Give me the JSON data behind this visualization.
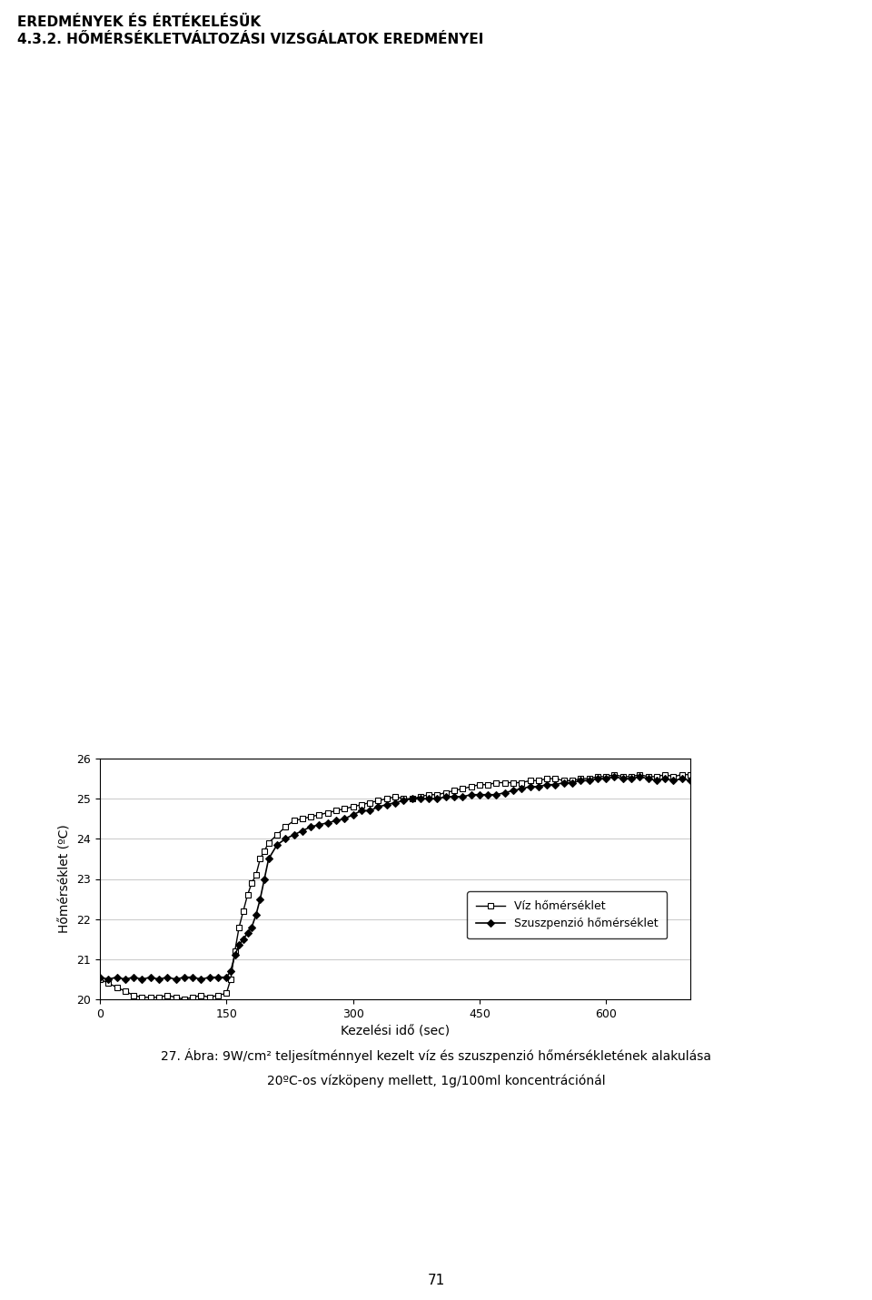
{
  "title": "",
  "xlabel": "Kezelési idő (sec)",
  "ylabel": "Hőmérséklet (ºC)",
  "xlim": [
    0,
    700
  ],
  "ylim": [
    20,
    26
  ],
  "xticks": [
    0,
    150,
    300,
    450,
    600
  ],
  "yticks": [
    20,
    21,
    22,
    23,
    24,
    25,
    26
  ],
  "legend1": "Víz hőmérséklet",
  "legend2": "Szuszpenzió hőmérséklet",
  "background_color": "#ffffff",
  "line1_color": "#000000",
  "line2_color": "#000000",
  "water_x": [
    0,
    10,
    20,
    30,
    40,
    50,
    60,
    70,
    80,
    90,
    100,
    110,
    120,
    130,
    140,
    150,
    155,
    160,
    165,
    170,
    175,
    180,
    185,
    190,
    195,
    200,
    210,
    220,
    230,
    240,
    250,
    260,
    270,
    280,
    290,
    300,
    310,
    320,
    330,
    340,
    350,
    360,
    370,
    380,
    390,
    400,
    410,
    420,
    430,
    440,
    450,
    460,
    470,
    480,
    490,
    500,
    510,
    520,
    530,
    540,
    550,
    560,
    570,
    580,
    590,
    600,
    610,
    620,
    630,
    640,
    650,
    660,
    670,
    680,
    690,
    700
  ],
  "water_y": [
    20.5,
    20.4,
    20.3,
    20.2,
    20.1,
    20.05,
    20.05,
    20.05,
    20.1,
    20.05,
    20.0,
    20.05,
    20.1,
    20.05,
    20.1,
    20.15,
    20.5,
    21.2,
    21.8,
    22.2,
    22.6,
    22.9,
    23.1,
    23.5,
    23.7,
    23.9,
    24.1,
    24.3,
    24.45,
    24.5,
    24.55,
    24.6,
    24.65,
    24.7,
    24.75,
    24.8,
    24.85,
    24.9,
    24.95,
    25.0,
    25.05,
    25.0,
    25.0,
    25.05,
    25.1,
    25.1,
    25.15,
    25.2,
    25.25,
    25.3,
    25.35,
    25.35,
    25.4,
    25.4,
    25.4,
    25.4,
    25.45,
    25.45,
    25.5,
    25.5,
    25.45,
    25.45,
    25.5,
    25.5,
    25.55,
    25.55,
    25.6,
    25.55,
    25.55,
    25.6,
    25.55,
    25.55,
    25.6,
    25.55,
    25.6,
    25.6
  ],
  "susp_x": [
    0,
    10,
    20,
    30,
    40,
    50,
    60,
    70,
    80,
    90,
    100,
    110,
    120,
    130,
    140,
    150,
    155,
    160,
    165,
    170,
    175,
    180,
    185,
    190,
    195,
    200,
    210,
    220,
    230,
    240,
    250,
    260,
    270,
    280,
    290,
    300,
    310,
    320,
    330,
    340,
    350,
    360,
    370,
    380,
    390,
    400,
    410,
    420,
    430,
    440,
    450,
    460,
    470,
    480,
    490,
    500,
    510,
    520,
    530,
    540,
    550,
    560,
    570,
    580,
    590,
    600,
    610,
    620,
    630,
    640,
    650,
    660,
    670,
    680,
    690,
    700
  ],
  "susp_y": [
    20.55,
    20.5,
    20.55,
    20.5,
    20.55,
    20.5,
    20.55,
    20.5,
    20.55,
    20.5,
    20.55,
    20.55,
    20.5,
    20.55,
    20.55,
    20.55,
    20.7,
    21.1,
    21.35,
    21.5,
    21.65,
    21.8,
    22.1,
    22.5,
    23.0,
    23.5,
    23.85,
    24.0,
    24.1,
    24.2,
    24.3,
    24.35,
    24.4,
    24.45,
    24.5,
    24.6,
    24.7,
    24.7,
    24.8,
    24.85,
    24.9,
    24.95,
    25.0,
    25.0,
    25.0,
    25.0,
    25.05,
    25.05,
    25.05,
    25.1,
    25.1,
    25.1,
    25.1,
    25.15,
    25.2,
    25.25,
    25.3,
    25.3,
    25.35,
    25.35,
    25.4,
    25.4,
    25.45,
    25.45,
    25.5,
    25.5,
    25.55,
    25.5,
    25.5,
    25.55,
    25.5,
    25.45,
    25.5,
    25.45,
    25.5,
    25.45
  ]
}
